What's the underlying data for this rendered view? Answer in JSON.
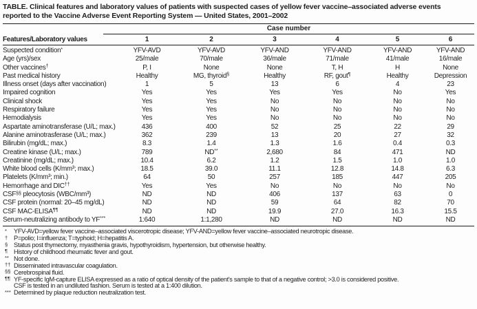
{
  "title": "TABLE. Clinical features and laboratory values of patients with suspected cases of yellow fever vaccine–associated adverse events\nreported to the Vaccine Adverse Event Reporting System — United States, 2001–2002",
  "table": {
    "spanner_label": "Case number",
    "features_header": "Features/Laboratory values",
    "case_numbers": [
      "1",
      "2",
      "3",
      "4",
      "5",
      "6"
    ],
    "rows": [
      {
        "label": [
          "Suspected condition",
          "*",
          ""
        ],
        "values": [
          "YFV-AVD",
          "YFV-AVD",
          "YFV-AND",
          "YFV-AND",
          "YFV-AND",
          "YFV-AND"
        ]
      },
      {
        "label": "Age (yrs)/sex",
        "values": [
          "25/male",
          "70/male",
          "36/male",
          "71/male",
          "41/male",
          "16/male"
        ]
      },
      {
        "label": [
          "Other vaccines",
          "†",
          ""
        ],
        "values": [
          "P, I",
          "None",
          "None",
          "T, H",
          "H",
          "None"
        ]
      },
      {
        "label": "Past medical history",
        "values": [
          "Healthy",
          [
            "MG, thyroid",
            "§",
            ""
          ],
          "Healthy",
          [
            "RF, gout",
            "¶",
            ""
          ],
          "Healthy",
          "Depression"
        ]
      },
      {
        "label": "Illness onset (days after vaccination)",
        "values": [
          "1",
          "5",
          "13",
          "6",
          "4",
          "23"
        ]
      },
      {
        "label": "Impaired cognition",
        "values": [
          "Yes",
          "Yes",
          "Yes",
          "Yes",
          "No",
          "Yes"
        ]
      },
      {
        "label": "Clinical shock",
        "values": [
          "Yes",
          "Yes",
          "No",
          "No",
          "No",
          "No"
        ]
      },
      {
        "label": "Respiratory failure",
        "values": [
          "Yes",
          "Yes",
          "No",
          "No",
          "No",
          "No"
        ]
      },
      {
        "label": "Hemodialysis",
        "values": [
          "Yes",
          "Yes",
          "No",
          "No",
          "No",
          "No"
        ]
      },
      {
        "label": "Aspartate aminotransferase  (U/L; max.)",
        "values": [
          "436",
          "400",
          "52",
          "25",
          "22",
          "29"
        ]
      },
      {
        "label": "Alanine aminotrasferase  (U/L; max.)",
        "values": [
          "362",
          "239",
          "13",
          "20",
          "27",
          "32"
        ]
      },
      {
        "label": "Bilirubin (mg/dL; max.)",
        "values": [
          "8.3",
          "1.4",
          "1.3",
          "1.6",
          "0.4",
          "0.3"
        ]
      },
      {
        "label": "Creatine kinase (U/L; max.)",
        "values": [
          "789",
          [
            "ND",
            "**",
            ""
          ],
          "2,680",
          "84",
          "471",
          "ND"
        ]
      },
      {
        "label": "Creatinine (mg/dL; max.)",
        "values": [
          "10.4",
          "6.2",
          "1.2",
          "1.5",
          "1.0",
          "1.0"
        ]
      },
      {
        "label": "White blood cells (K/mm³; max.)",
        "values": [
          "18.5",
          "39.0",
          "11.1",
          "12.8",
          "14.8",
          "6.3"
        ]
      },
      {
        "label": "Platelets (K/mm³; min.)",
        "values": [
          "64",
          "50",
          "257",
          "185",
          "447",
          "205"
        ]
      },
      {
        "label": [
          "Hemorrhage and DIC",
          "††",
          ""
        ],
        "values": [
          "Yes",
          "Yes",
          "No",
          "No",
          "No",
          "No"
        ]
      },
      {
        "label": [
          "CSF",
          "§§",
          " pleocytosis (WBC/mm³)"
        ],
        "values": [
          "ND",
          "ND",
          "406",
          "137",
          "63",
          "0"
        ]
      },
      {
        "label": "CSF protein (normal: 20–45 mg/dL)",
        "values": [
          "ND",
          "ND",
          "59",
          "64",
          "82",
          "70"
        ]
      },
      {
        "label": [
          "CSF MAC-ELISA",
          "¶¶",
          ""
        ],
        "values": [
          "ND",
          "ND",
          "19.9",
          "27.0",
          "16.3",
          "15.5"
        ]
      },
      {
        "label": [
          "Serum-neutralizing antibody to YF",
          "***",
          ""
        ],
        "values": [
          "1:640",
          "1:1,280",
          "ND",
          "ND",
          "ND",
          "ND"
        ]
      }
    ]
  },
  "footnotes": [
    {
      "marker": "*",
      "text": "YFV-AVD=yellow fever vaccine–associated viscerotropic disease; YFV-AND=yellow fever vaccine–associated neurotropic disease."
    },
    {
      "marker": "†",
      "text": "P=polio; I=influenza; T=typhoid; H=hepatitis A."
    },
    {
      "marker": "§",
      "text": "Status post thymectomy, myasthenia gravis, hypothyroidism, hypertension, but otherwise healthy."
    },
    {
      "marker": "¶",
      "text": "History of childhood rheumatic fever and gout."
    },
    {
      "marker": "**",
      "text": "Not done."
    },
    {
      "marker": "††",
      "text": "Disseminated intravascular coagulation."
    },
    {
      "marker": "§§",
      "text": "Cerebrospinal fluid."
    },
    {
      "marker": "¶¶",
      "text": "YF-specific IgM-capture ELISA expressed as a ratio of optical density of the patient's sample to that of a negative control; >3.0 is considered positive.\nCSF is tested in an undiluted fashion. Serum is tested at a 1:400 dilution."
    },
    {
      "marker": "***",
      "text": "Determined by plaque reduction neutralization test."
    }
  ],
  "colors": {
    "text": "#1e1e1e",
    "background": "#fdfdfd",
    "rule": "#1a1a1a"
  }
}
